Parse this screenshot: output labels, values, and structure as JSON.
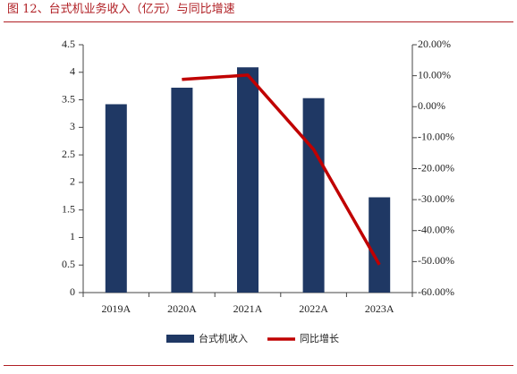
{
  "title": "图 12、台式机业务收入（亿元）与同比增速",
  "colors": {
    "bar": "#1f3864",
    "line": "#c00000",
    "accent": "#b01f24"
  },
  "chart_data": {
    "type": "bar",
    "categories": [
      "2019A",
      "2020A",
      "2021A",
      "2022A",
      "2023A"
    ],
    "series": [
      {
        "name": "台式机收入",
        "type": "bar",
        "axis": "left",
        "values": [
          3.42,
          3.72,
          4.09,
          3.53,
          1.73
        ]
      },
      {
        "name": "同比增长",
        "type": "line",
        "axis": "right",
        "values": [
          null,
          8.8,
          10.2,
          -13.8,
          -51.0
        ]
      }
    ],
    "y_left": {
      "range": [
        0,
        4.5
      ],
      "ticks": [
        "0",
        "0.5",
        "1",
        "1.5",
        "2",
        "2.5",
        "3",
        "3.5",
        "4",
        "4.5"
      ]
    },
    "y_right": {
      "range": [
        -60,
        20
      ],
      "ticks": [
        "-60.00%",
        "-50.00%",
        "-40.00%",
        "-30.00%",
        "-20.00%",
        "-10.00%",
        "0.00%",
        "10.00%",
        "20.00%"
      ]
    },
    "legend": {
      "position": "bottom",
      "items": [
        "台式机收入",
        "同比增长"
      ]
    },
    "grid": false
  }
}
